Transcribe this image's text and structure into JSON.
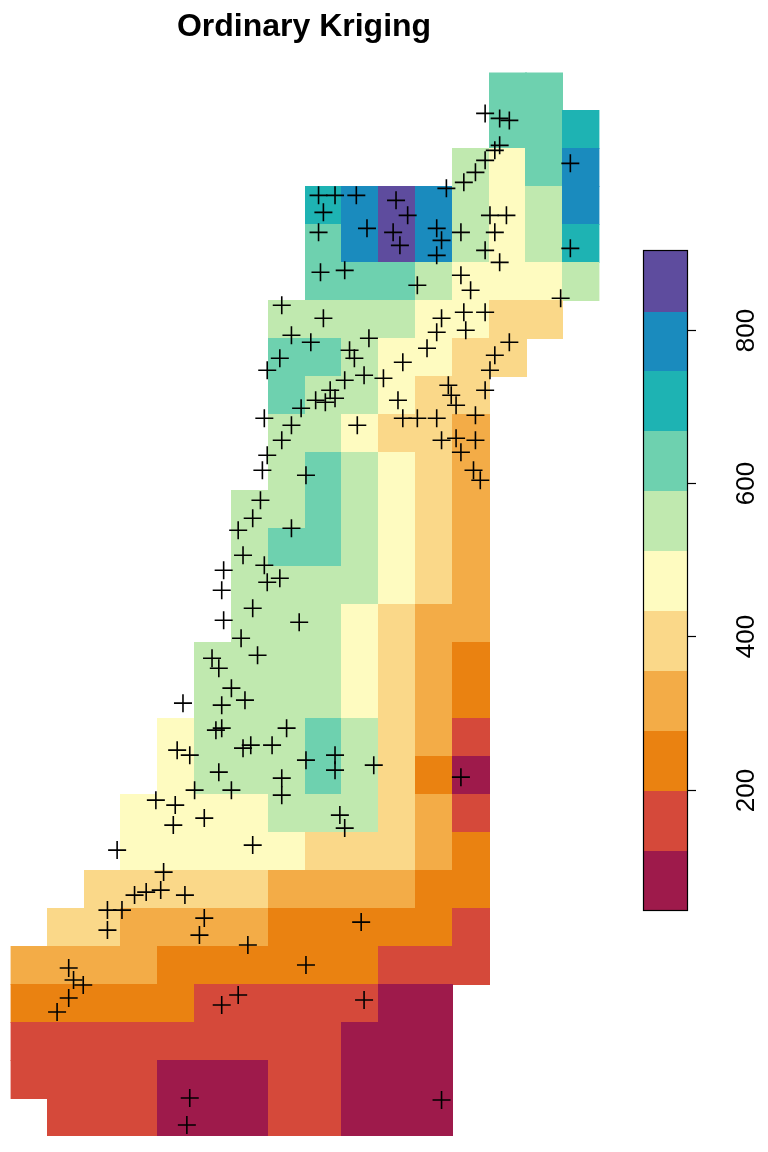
{
  "chart_data": {
    "type": "heatmap",
    "title": "Ordinary Kriging",
    "xlim": [
      0,
      608
    ],
    "ylim": [
      0,
      1064
    ],
    "tick_labels": false,
    "grid": false,
    "cells": {
      "x": [
        19,
        57,
        95,
        133,
        171,
        209,
        247,
        285,
        323,
        361,
        399,
        437,
        475,
        513,
        551,
        589
      ],
      "y": [
        1045,
        1007,
        969,
        931,
        893,
        855,
        817,
        779,
        741,
        703,
        665,
        627,
        589,
        551,
        513,
        475,
        437,
        399,
        361,
        323,
        285,
        247,
        209,
        171,
        133,
        95,
        57,
        19
      ],
      "values": [
        [
          null,
          null,
          null,
          null,
          null,
          null,
          null,
          null,
          null,
          null,
          null,
          null,
          null,
          650,
          610,
          null
        ],
        [
          null,
          null,
          null,
          null,
          null,
          null,
          null,
          null,
          null,
          null,
          null,
          null,
          null,
          660,
          600,
          700
        ],
        [
          null,
          null,
          null,
          null,
          null,
          null,
          null,
          null,
          null,
          null,
          null,
          null,
          540,
          480,
          600,
          780
        ],
        [
          null,
          null,
          null,
          null,
          null,
          null,
          null,
          null,
          700,
          780,
          870,
          790,
          560,
          470,
          560,
          780
        ],
        [
          null,
          null,
          null,
          null,
          null,
          null,
          null,
          null,
          640,
          760,
          860,
          770,
          570,
          500,
          590,
          680
        ],
        [
          null,
          null,
          null,
          null,
          null,
          null,
          null,
          null,
          620,
          640,
          620,
          560,
          480,
          450,
          470,
          540
        ],
        [
          null,
          null,
          null,
          null,
          null,
          null,
          null,
          560,
          560,
          540,
          530,
          500,
          470,
          420,
          410,
          null
        ],
        [
          null,
          null,
          null,
          null,
          null,
          null,
          null,
          620,
          610,
          550,
          500,
          480,
          420,
          400,
          null,
          null
        ],
        [
          null,
          null,
          null,
          null,
          null,
          null,
          null,
          620,
          570,
          520,
          480,
          420,
          390,
          null,
          null,
          null
        ],
        [
          null,
          null,
          null,
          null,
          null,
          null,
          null,
          570,
          560,
          500,
          430,
          410,
          340,
          null,
          null,
          null
        ],
        [
          null,
          null,
          null,
          null,
          null,
          null,
          null,
          570,
          600,
          530,
          450,
          400,
          340,
          null,
          null,
          null
        ],
        [
          null,
          null,
          null,
          null,
          null,
          null,
          540,
          580,
          610,
          540,
          460,
          390,
          320,
          null,
          null,
          null
        ],
        [
          null,
          null,
          null,
          null,
          null,
          null,
          540,
          600,
          610,
          530,
          450,
          370,
          310,
          null,
          null,
          null
        ],
        [
          null,
          null,
          null,
          null,
          null,
          null,
          550,
          580,
          570,
          520,
          440,
          360,
          300,
          null,
          null,
          null
        ],
        [
          null,
          null,
          null,
          null,
          null,
          null,
          540,
          540,
          540,
          480,
          420,
          320,
          290,
          null,
          null,
          null
        ],
        [
          null,
          null,
          null,
          null,
          null,
          530,
          550,
          540,
          530,
          470,
          400,
          300,
          250,
          null,
          null,
          null
        ],
        [
          null,
          null,
          null,
          null,
          null,
          530,
          540,
          540,
          560,
          480,
          380,
          290,
          220,
          null,
          null,
          null
        ],
        [
          null,
          null,
          null,
          null,
          490,
          530,
          550,
          550,
          620,
          530,
          400,
          280,
          150,
          null,
          null,
          null
        ],
        [
          null,
          null,
          null,
          null,
          490,
          530,
          530,
          540,
          620,
          530,
          380,
          250,
          100,
          null,
          null,
          null
        ],
        [
          null,
          null,
          null,
          450,
          480,
          500,
          490,
          520,
          560,
          520,
          380,
          290,
          170,
          null,
          null,
          null
        ],
        [
          null,
          null,
          null,
          450,
          470,
          480,
          460,
          470,
          420,
          400,
          360,
          300,
          230,
          null,
          null,
          null
        ],
        [
          null,
          null,
          400,
          400,
          380,
          400,
          380,
          340,
          320,
          300,
          290,
          250,
          230,
          null,
          null,
          null
        ],
        [
          null,
          370,
          370,
          340,
          320,
          300,
          290,
          260,
          250,
          250,
          240,
          230,
          190,
          null,
          null,
          null
        ],
        [
          330,
          310,
          300,
          290,
          270,
          250,
          240,
          230,
          220,
          210,
          190,
          180,
          160,
          null,
          null,
          null
        ],
        [
          260,
          250,
          230,
          220,
          210,
          190,
          190,
          180,
          170,
          140,
          110,
          110,
          null,
          null,
          null,
          null
        ],
        [
          190,
          180,
          170,
          170,
          170,
          160,
          160,
          150,
          140,
          110,
          90,
          90,
          null,
          null,
          null,
          null
        ],
        [
          170,
          170,
          160,
          150,
          120,
          100,
          110,
          130,
          150,
          100,
          80,
          80,
          null,
          null,
          null,
          null
        ],
        [
          null,
          160,
          150,
          130,
          100,
          90,
          110,
          140,
          150,
          100,
          80,
          80,
          null,
          null,
          null,
          null
        ]
      ]
    },
    "colorbar": {
      "range": [
        43,
        904
      ],
      "ticks": [
        200,
        400,
        600,
        800
      ],
      "colors": [
        "#9E1A4B",
        "#D5493A",
        "#EA8211",
        "#F3AC47",
        "#FAD889",
        "#FEFBC0",
        "#C0E9AF",
        "#6ED1AF",
        "#1EB3B3",
        "#1A8BBE",
        "#5E4C9E"
      ]
    },
    "points": {
      "marker": "cross",
      "color": "#000000",
      "x": [
        490,
        505,
        515,
        500,
        505,
        578,
        490,
        480,
        468,
        450,
        318,
        335,
        357,
        323,
        318,
        398,
        410,
        368,
        395,
        402,
        440,
        445,
        465,
        495,
        512,
        500,
        490,
        440,
        505,
        578,
        320,
        345,
        420,
        465,
        475,
        568,
        280,
        323,
        290,
        310,
        370,
        350,
        278,
        265,
        355,
        405,
        385,
        365,
        345,
        330,
        325,
        315,
        335,
        445,
        440,
        430,
        468,
        470,
        490,
        515,
        500,
        495,
        452,
        490,
        400,
        405,
        420,
        440,
        455,
        460,
        445,
        460,
        465,
        480,
        478,
        485,
        480,
        300,
        290,
        262,
        280,
        265,
        260,
        305,
        358,
        250,
        258,
        290,
        235,
        240,
        220,
        218,
        220,
        250,
        262,
        278,
        265,
        298,
        238,
        208,
        215,
        255,
        228,
        218,
        178,
        242,
        218,
        212,
        285,
        240,
        248,
        270,
        305,
        335,
        335,
        375,
        172,
        185,
        190,
        228,
        280,
        280,
        215,
        150,
        170,
        200,
        168,
        340,
        345,
        250,
        110,
        158,
        155,
        180,
        140,
        128,
        100,
        115,
        100,
        200,
        195,
        362,
        245,
        305,
        60,
        65,
        75,
        60,
        48,
        235,
        218,
        365,
        185,
        445,
        182,
        465
      ],
      "y": [
        1023,
        1018,
        1016,
        986,
        991,
        973,
        976,
        964,
        954,
        948,
        941,
        941,
        941,
        924,
        904,
        936,
        921,
        908,
        904,
        891,
        908,
        896,
        904,
        921,
        921,
        904,
        886,
        881,
        874,
        888,
        864,
        866,
        851,
        861,
        846,
        838,
        831,
        818,
        801,
        794,
        798,
        786,
        778,
        766,
        778,
        774,
        758,
        761,
        756,
        746,
        734,
        736,
        738,
        818,
        804,
        788,
        824,
        806,
        824,
        794,
        781,
        766,
        751,
        746,
        736,
        718,
        718,
        718,
        741,
        731,
        696,
        698,
        684,
        696,
        666,
        656,
        721,
        728,
        711,
        718,
        696,
        681,
        666,
        661,
        711,
        618,
        636,
        608,
        606,
        581,
        566,
        546,
        516,
        528,
        571,
        558,
        554,
        514,
        498,
        478,
        468,
        481,
        448,
        431,
        433,
        436,
        408,
        406,
        408,
        388,
        391,
        391,
        376,
        381,
        366,
        371,
        386,
        381,
        346,
        346,
        358,
        341,
        364,
        336,
        331,
        318,
        311,
        321,
        308,
        291,
        286,
        264,
        246,
        241,
        244,
        241,
        226,
        226,
        206,
        218,
        201,
        214,
        191,
        171,
        168,
        156,
        151,
        138,
        124,
        141,
        131,
        136,
        38,
        36,
        11,
        359
      ]
    }
  }
}
